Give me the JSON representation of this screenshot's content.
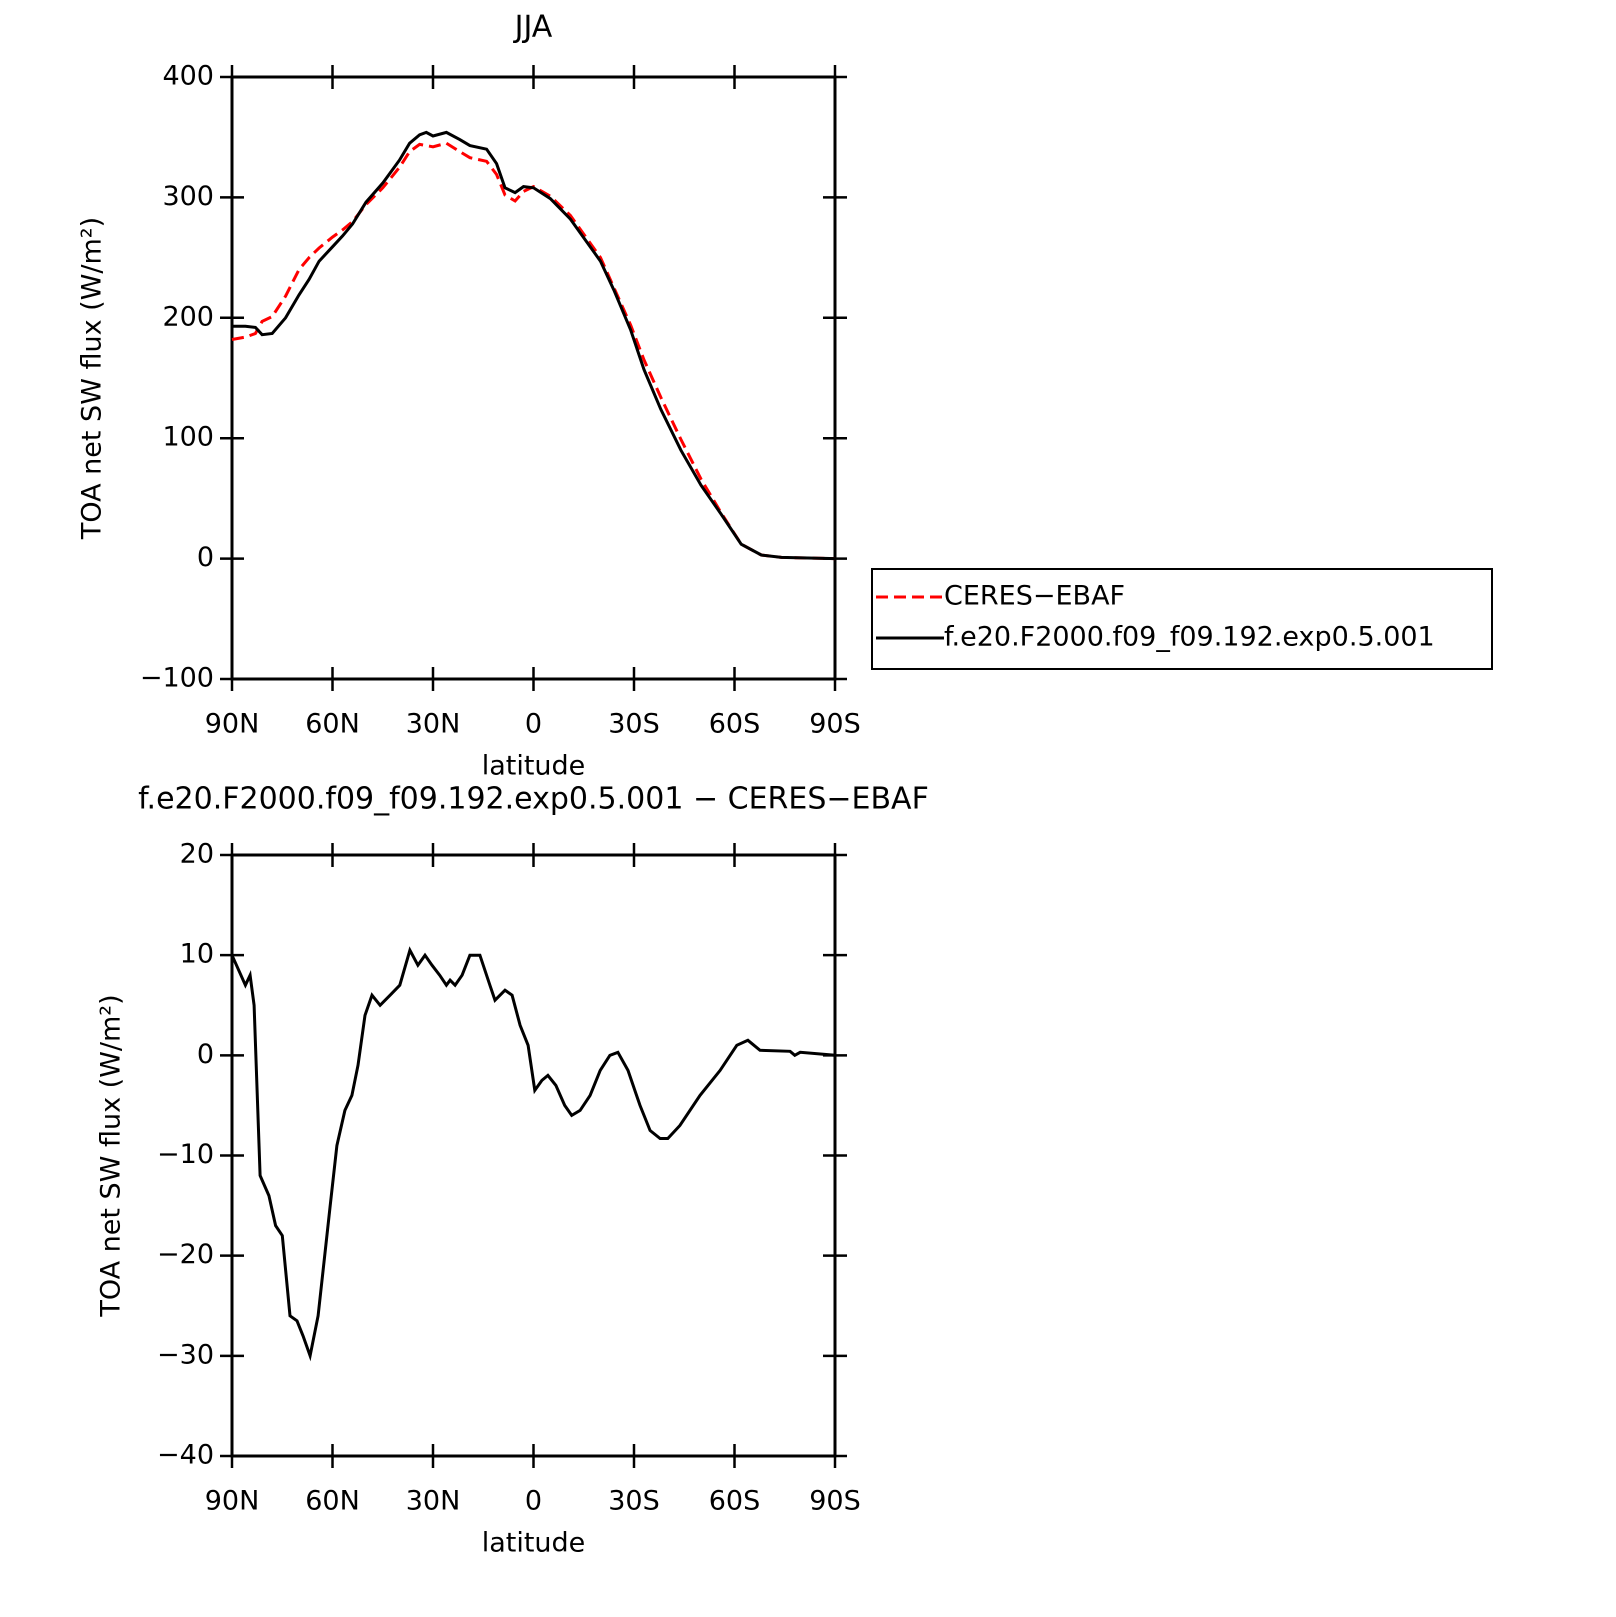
{
  "chart_data": [
    {
      "type": "line",
      "title": "JJA",
      "xlabel": "latitude",
      "ylabel": "TOA net SW flux (W/m²)",
      "xlim": [
        90,
        -90
      ],
      "xticks": [
        {
          "value": 90,
          "label": "90N"
        },
        {
          "value": 60,
          "label": "60N"
        },
        {
          "value": 30,
          "label": "30N"
        },
        0,
        {
          "value": -30,
          "label": "30S"
        },
        {
          "value": -60,
          "label": "60S"
        },
        {
          "value": -90,
          "label": "90S"
        }
      ],
      "ylim": [
        -100,
        400
      ],
      "yticks": [
        {
          "value": -100,
          "label": "−100"
        },
        0,
        100,
        200,
        300,
        400
      ],
      "legend": "outside right",
      "x": [
        90,
        86,
        83,
        81,
        78,
        74,
        70,
        67,
        64,
        60,
        57,
        54,
        50,
        45,
        40,
        37,
        34,
        32,
        30,
        26,
        22,
        19,
        14,
        11,
        8.5,
        5.5,
        3,
        0,
        -5,
        -11,
        -20,
        -24,
        -29,
        -33,
        -38,
        -44,
        -50,
        -56,
        -62,
        -68,
        -74,
        -90
      ],
      "series": [
        {
          "name": "CERES−EBAF",
          "color": "#ff0000",
          "line_style": "dashed",
          "values": [
            182,
            184,
            187,
            197,
            201,
            218,
            240,
            250,
            258,
            267,
            273,
            280,
            294,
            308,
            325,
            338,
            344,
            343,
            342,
            345,
            338,
            333,
            330,
            319,
            302,
            297,
            305,
            309,
            301,
            285,
            250,
            225,
            194,
            165,
            134,
            99,
            66,
            38,
            12,
            3,
            1,
            0
          ]
        },
        {
          "name": "f.e20.F2000.f09_f09.192.exp0.5.001",
          "color": "#000000",
          "line_style": "solid",
          "values": [
            193,
            193,
            192,
            186,
            187,
            200,
            219,
            232,
            247,
            259,
            268,
            278,
            296,
            312,
            331,
            345,
            352,
            354,
            351,
            354,
            348,
            343,
            340,
            328,
            308,
            304,
            309,
            308,
            299,
            282,
            247,
            223,
            190,
            157,
            124,
            90,
            61,
            37,
            12,
            3,
            1,
            0
          ]
        }
      ]
    },
    {
      "type": "line",
      "title": "f.e20.F2000.f09_f09.192.exp0.5.001 − CERES−EBAF",
      "xlabel": "latitude",
      "ylabel": "TOA net SW flux (W/m²)",
      "xlim": [
        90,
        -90
      ],
      "xticks": [
        {
          "value": 90,
          "label": "90N"
        },
        {
          "value": 60,
          "label": "60N"
        },
        {
          "value": 30,
          "label": "30N"
        },
        0,
        {
          "value": -30,
          "label": "30S"
        },
        {
          "value": -60,
          "label": "60S"
        },
        {
          "value": -90,
          "label": "90S"
        }
      ],
      "ylim": [
        -40,
        20
      ],
      "yticks": [
        {
          "value": -40,
          "label": "−40"
        },
        {
          "value": -30,
          "label": "−30"
        },
        {
          "value": -20,
          "label": "−20"
        },
        {
          "value": -10,
          "label": "−10"
        },
        0,
        10,
        20
      ],
      "x": [
        90,
        86,
        84.6,
        83.4,
        81.6,
        79,
        77,
        75,
        72.7,
        70.6,
        68.8,
        66.7,
        64.3,
        62,
        60.7,
        58.7,
        56.3,
        54.2,
        52.4,
        50.3,
        48.2,
        45.8,
        42.8,
        39.9,
        36.9,
        34.5,
        32.4,
        30.3,
        28,
        26,
        24.9,
        23.4,
        21.3,
        19,
        16,
        13,
        11.5,
        8.5,
        6.4,
        4,
        1.6,
        -0.4,
        -2.5,
        -4.3,
        -6.7,
        -9.3,
        -11.4,
        -13.9,
        -16.9,
        -19.9,
        -22.8,
        -25.2,
        -28.2,
        -31.8,
        -34.8,
        -37.8,
        -40.1,
        -43.7,
        -49.7,
        -55.7,
        -60.7,
        -64,
        -67.6,
        -76.6,
        -78,
        -79.6,
        -90
      ],
      "series": [
        {
          "color": "#000000",
          "line_style": "solid",
          "values": [
            10,
            7,
            8,
            5,
            -12,
            -14,
            -17,
            -18,
            -26,
            -26.5,
            -28,
            -30,
            -26,
            -19,
            -15,
            -9,
            -5.5,
            -4,
            -1,
            4,
            6,
            5,
            6,
            7,
            10.5,
            9,
            10,
            9,
            8,
            7,
            7.5,
            7,
            8,
            10,
            10,
            7,
            5.5,
            6.5,
            6,
            3,
            1,
            -3.5,
            -2.5,
            -2,
            -3,
            -5,
            -6,
            -5.5,
            -4,
            -1.5,
            0,
            0.3,
            -1.5,
            -5,
            -7.5,
            -8.3,
            -8.3,
            -7,
            -4,
            -1.5,
            1,
            1.5,
            0.5,
            0.4,
            0,
            0.3,
            0
          ]
        }
      ]
    }
  ]
}
